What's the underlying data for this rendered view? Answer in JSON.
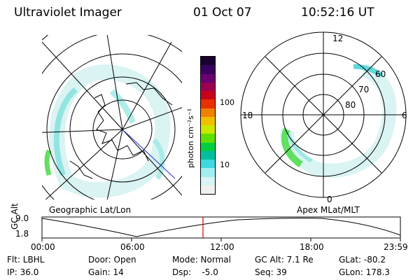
{
  "header": {
    "instrument": "Ultraviolet Imager",
    "date": "01 Oct 07",
    "time": "10:52:16 UT"
  },
  "colorbar": {
    "unit_label": "photon cm⁻²s⁻¹",
    "ticks": [
      "100",
      "10"
    ],
    "colors": [
      "#1a0030",
      "#3a0060",
      "#6a0070",
      "#9a0050",
      "#c8001a",
      "#e83000",
      "#f08000",
      "#f0c000",
      "#c8e800",
      "#60e000",
      "#00d040",
      "#00c0a0",
      "#40d8e0",
      "#a0eef0",
      "#d8f4f4",
      "#f0f0f0"
    ]
  },
  "left_map": {
    "label": "Geographic Lat/Lon"
  },
  "right_map": {
    "label": "Apex MLat/MLT",
    "mlt_labels": {
      "top": "12",
      "left": "18",
      "right": "6",
      "bottom": "0"
    },
    "lat_labels": [
      "60",
      "70",
      "80"
    ]
  },
  "timeline": {
    "y_label": "GC Alt",
    "y_ticks": [
      "9.0",
      "1.8"
    ],
    "x_ticks": [
      "00:00",
      "06:00",
      "12:00",
      "18:00",
      "23:59"
    ],
    "marker_color": "#e00000"
  },
  "footer": {
    "col1": [
      "Flt: LBHL",
      "IP: 36.0"
    ],
    "col2": [
      "Door: Open",
      "Gain: 14"
    ],
    "col3": [
      "Mode: Normal",
      "Dsp:    -5.0"
    ],
    "col4": [
      "GC Alt: 7.1 Re",
      "Seq: 39"
    ],
    "col5": [
      "GLat: -80.2",
      "GLon: 178.3"
    ]
  }
}
